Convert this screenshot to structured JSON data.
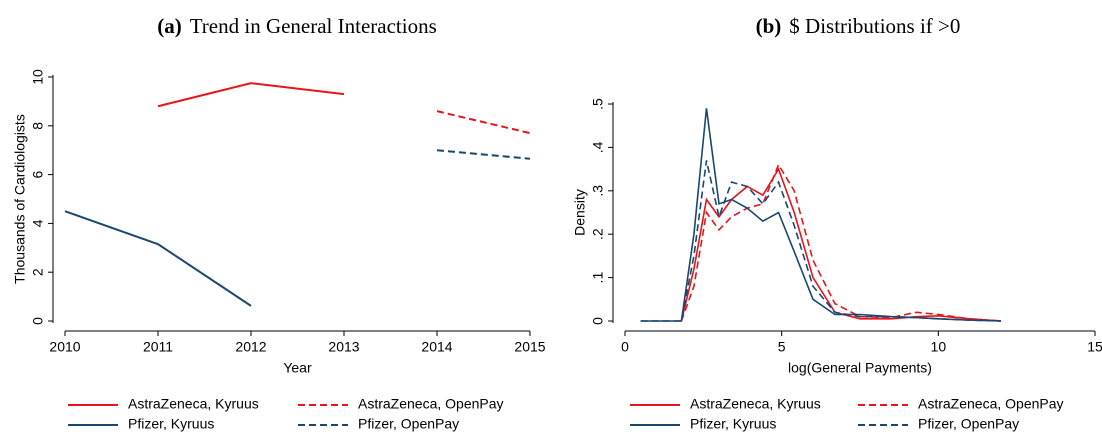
{
  "chart_data": [
    {
      "type": "line",
      "panel_label": "(a)",
      "title": "Trend in General Interactions",
      "xlabel": "Year",
      "ylabel": "Thousands of Cardiologists",
      "x": [
        2010,
        2011,
        2012,
        2013,
        2014,
        2015
      ],
      "xlim": [
        2010,
        2015
      ],
      "xticks": [
        2010,
        2011,
        2012,
        2013,
        2014,
        2015
      ],
      "ylim": [
        0,
        10
      ],
      "yticks": [
        0,
        2,
        4,
        6,
        8,
        10
      ],
      "grid": false,
      "legend": "bottom",
      "series": [
        {
          "name": "AstraZeneca, Kyruus",
          "color": "#e8141b",
          "dash": false,
          "values": [
            null,
            8.8,
            9.75,
            9.3,
            null,
            null
          ]
        },
        {
          "name": "AstraZeneca, OpenPay",
          "color": "#e8141b",
          "dash": true,
          "values": [
            null,
            null,
            null,
            null,
            8.6,
            7.7
          ]
        },
        {
          "name": "Pfizer, Kyruus",
          "color": "#1a476f",
          "dash": false,
          "values": [
            4.5,
            3.15,
            0.62,
            null,
            null,
            null
          ]
        },
        {
          "name": "Pfizer, OpenPay",
          "color": "#1a476f",
          "dash": true,
          "values": [
            null,
            null,
            null,
            null,
            7.0,
            6.65
          ]
        }
      ]
    },
    {
      "type": "line",
      "panel_label": "(b)",
      "title": "$ Distributions if >0",
      "xlabel": "log(General Payments)",
      "ylabel": "Density",
      "x": [
        0.5,
        1.8,
        2.2,
        2.6,
        3.0,
        3.4,
        3.9,
        4.4,
        4.9,
        5.4,
        6.0,
        6.7,
        7.5,
        8.5,
        9.3,
        10,
        11,
        12
      ],
      "xlim": [
        0,
        15
      ],
      "xticks": [
        0,
        5,
        10,
        15
      ],
      "ylim": [
        0,
        0.5
      ],
      "yticks": [
        0,
        {
          "value": 0.1,
          "label": ".1"
        },
        {
          "value": 0.2,
          "label": ".2"
        },
        {
          "value": 0.3,
          "label": ".3"
        },
        {
          "value": 0.4,
          "label": ".4"
        },
        {
          "value": 0.5,
          "label": ".5"
        }
      ],
      "grid": false,
      "legend": "bottom",
      "series": [
        {
          "name": "AstraZeneca, Kyruus",
          "color": "#e8141b",
          "dash": false,
          "values": [
            null,
            0,
            0.12,
            0.28,
            0.24,
            0.28,
            0.31,
            0.29,
            0.35,
            0.25,
            0.1,
            0.02,
            0.005,
            0.005,
            0.01,
            0.012,
            0.005,
            0
          ]
        },
        {
          "name": "AstraZeneca, OpenPay",
          "color": "#e8141b",
          "dash": true,
          "values": [
            null,
            0,
            0.08,
            0.25,
            0.21,
            0.24,
            0.26,
            0.27,
            0.36,
            0.3,
            0.14,
            0.04,
            0.01,
            0.008,
            0.02,
            0.015,
            0.005,
            0
          ]
        },
        {
          "name": "Pfizer, Kyruus",
          "color": "#1a476f",
          "dash": false,
          "values": [
            0,
            0,
            0.2,
            0.49,
            0.27,
            0.28,
            0.26,
            0.23,
            0.25,
            0.16,
            0.05,
            0.015,
            0.015,
            0.01,
            0.008,
            0.005,
            0.002,
            0
          ]
        },
        {
          "name": "Pfizer, OpenPay",
          "color": "#1a476f",
          "dash": true,
          "values": [
            0,
            0,
            0.15,
            0.37,
            0.24,
            0.32,
            0.31,
            0.27,
            0.32,
            0.22,
            0.08,
            0.02,
            0.01,
            0.01,
            0.008,
            0.005,
            0.002,
            0
          ]
        }
      ]
    }
  ]
}
